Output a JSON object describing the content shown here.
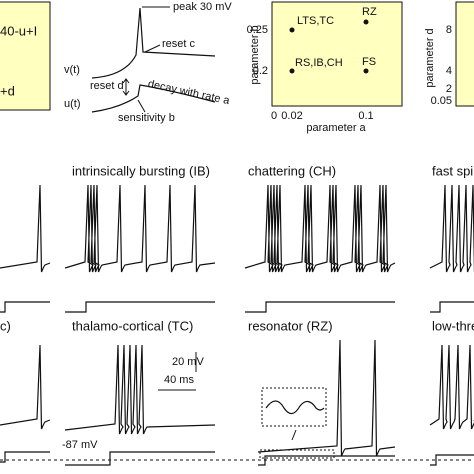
{
  "top": {
    "equation_1": "40-u+I",
    "equation_2": "+d",
    "diagram": {
      "peak": "peak 30 mV",
      "reset_c": "reset  c",
      "v_label": "v(t)",
      "u_label": "u(t)",
      "reset_d": "reset  d",
      "decay": "decay with  rate  a",
      "sensitivity": "sensitivity  b"
    },
    "param_ab": {
      "x_label": "parameter a",
      "y_label": "parameter b",
      "x_ticks": [
        "0",
        "0.02",
        "0.1"
      ],
      "y_ticks": [
        "0.25",
        "0.2"
      ],
      "points": [
        "LTS,TC",
        "RZ",
        "RS,IB,CH",
        "FS"
      ]
    },
    "param_d": {
      "y_label": "parameter d",
      "y_ticks": [
        "8",
        "4",
        "2",
        "0.05"
      ]
    }
  },
  "panels": {
    "row1": [
      "intrinsically bursting (IB)",
      "chattering (CH)",
      "fast spik"
    ],
    "row2": [
      "c)",
      "thalamo-cortical (TC)",
      "resonator (RZ)",
      "low-thres"
    ]
  },
  "scale_bar": {
    "voltage": "20 mV",
    "time": "40 ms"
  },
  "resting": "-87 mV"
}
